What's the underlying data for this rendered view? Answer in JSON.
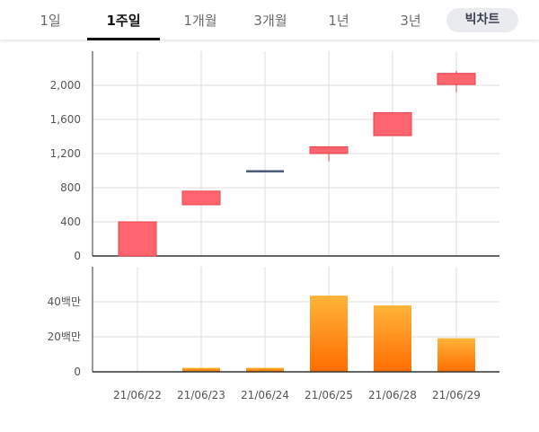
{
  "tabs": [
    {
      "label": "1일",
      "active": false
    },
    {
      "label": "1주일",
      "active": true
    },
    {
      "label": "1개월",
      "active": false
    },
    {
      "label": "3개월",
      "active": false
    },
    {
      "label": "1년",
      "active": false
    },
    {
      "label": "3년",
      "active": false
    }
  ],
  "big_chart_label": "빅차트",
  "colors": {
    "up": "#ff646f",
    "up_border": "#e5434f",
    "flat": "#4a5a78",
    "volume_top": "#ffb43a",
    "volume_bottom": "#ff6d00",
    "grid": "#dddddd",
    "axis": "#333333"
  },
  "chart_data": [
    {
      "type": "candlestick",
      "categories": [
        "21/06/22",
        "21/06/23",
        "21/06/24",
        "21/06/25",
        "21/06/28",
        "21/06/29"
      ],
      "series": [
        {
          "open": [
            0,
            600,
            995,
            1200,
            1410,
            2010
          ],
          "close": [
            400,
            760,
            995,
            1280,
            1680,
            2140
          ],
          "high": [
            400,
            760,
            995,
            1280,
            1680,
            2170
          ],
          "low": [
            0,
            600,
            995,
            1110,
            1410,
            1920
          ]
        }
      ],
      "yticks": [
        "0",
        "400",
        "800",
        "1,200",
        "1,600",
        "2,000"
      ],
      "ylim": [
        0,
        2400
      ],
      "grid": true
    },
    {
      "type": "bar",
      "categories": [
        "21/06/22",
        "21/06/23",
        "21/06/24",
        "21/06/25",
        "21/06/28",
        "21/06/29"
      ],
      "values": [
        0,
        2300000,
        2300000,
        43500000,
        37900000,
        19200000
      ],
      "yticks": [
        "0",
        "20백만",
        "40백만"
      ],
      "ylim": [
        0,
        60000000
      ],
      "grid": true
    }
  ]
}
